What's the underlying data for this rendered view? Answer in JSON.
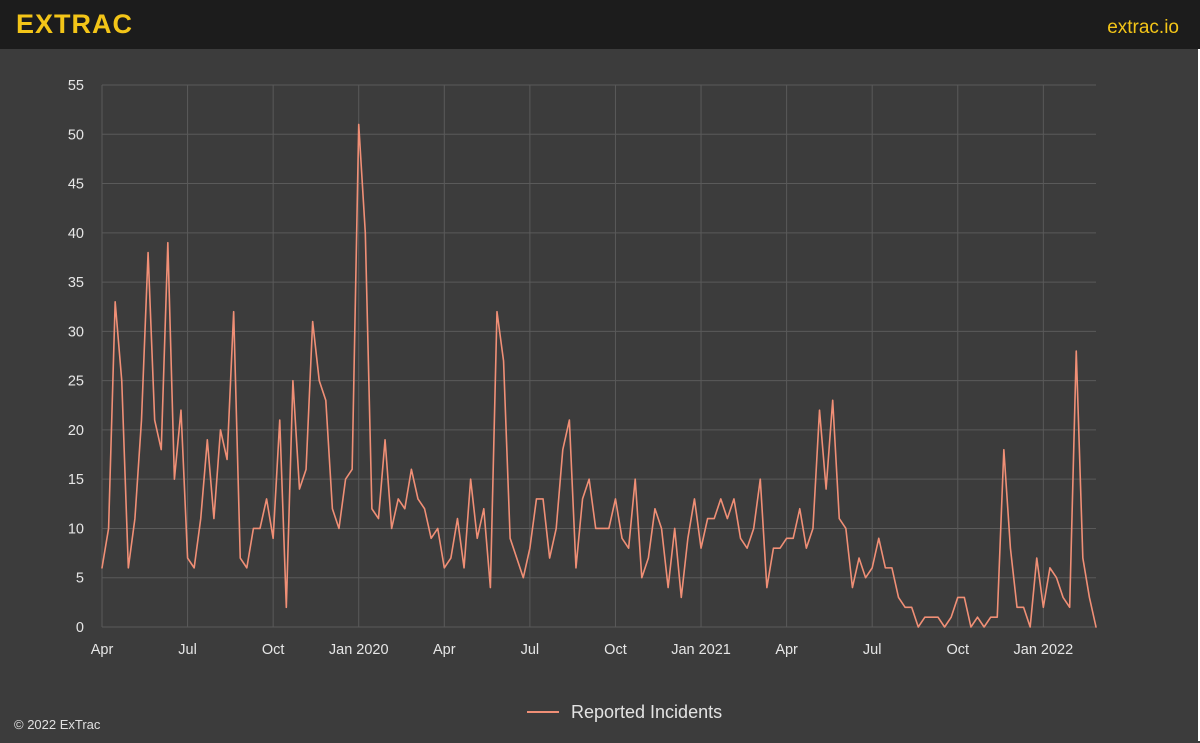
{
  "header": {
    "logo_text": "EXTRAC",
    "site_text": "extrac.io"
  },
  "footer": {
    "copyright": "© 2022 ExTrac"
  },
  "colors": {
    "line": "#f08f76",
    "brand": "#f3c518",
    "grid": "#5a5a5a",
    "background": "#3c3c3c"
  },
  "chart_data": {
    "type": "line",
    "title": "",
    "xlabel": "",
    "ylabel": "",
    "ylim": [
      0,
      55
    ],
    "yticks": [
      0,
      5,
      10,
      15,
      20,
      25,
      30,
      35,
      40,
      45,
      50,
      55
    ],
    "grid": true,
    "legend_position": "bottom-center",
    "x_tick_labels": [
      "Apr",
      "Jul",
      "Oct",
      "Jan 2020",
      "Apr",
      "Jul",
      "Oct",
      "Jan 2021",
      "Apr",
      "Jul",
      "Oct",
      "Jan 2022"
    ],
    "x_start_label": "Apr 2019",
    "x_step": "week",
    "series": [
      {
        "name": "Reported Incidents",
        "color": "#f08f76",
        "values": [
          6,
          10,
          33,
          25,
          6,
          11,
          21,
          38,
          21,
          18,
          39,
          15,
          22,
          7,
          6,
          11,
          19,
          11,
          20,
          17,
          32,
          7,
          6,
          10,
          10,
          13,
          9,
          21,
          2,
          25,
          14,
          16,
          31,
          25,
          23,
          12,
          10,
          15,
          16,
          51,
          40,
          12,
          11,
          19,
          10,
          13,
          12,
          16,
          13,
          12,
          9,
          10,
          6,
          7,
          11,
          6,
          15,
          9,
          12,
          4,
          32,
          27,
          9,
          7,
          5,
          8,
          13,
          13,
          7,
          10,
          18,
          21,
          6,
          13,
          15,
          10,
          10,
          10,
          13,
          9,
          8,
          15,
          5,
          7,
          12,
          10,
          4,
          10,
          3,
          9,
          13,
          8,
          11,
          11,
          13,
          11,
          13,
          9,
          8,
          10,
          15,
          4,
          8,
          8,
          9,
          9,
          12,
          8,
          10,
          22,
          14,
          23,
          11,
          10,
          4,
          7,
          5,
          6,
          9,
          6,
          6,
          3,
          2,
          2,
          0,
          1,
          1,
          1,
          0,
          1,
          3,
          3,
          0,
          1,
          0,
          1,
          1,
          18,
          8,
          2,
          2,
          0,
          7,
          2,
          6,
          5,
          3,
          2,
          28,
          7,
          3,
          0
        ]
      }
    ]
  }
}
